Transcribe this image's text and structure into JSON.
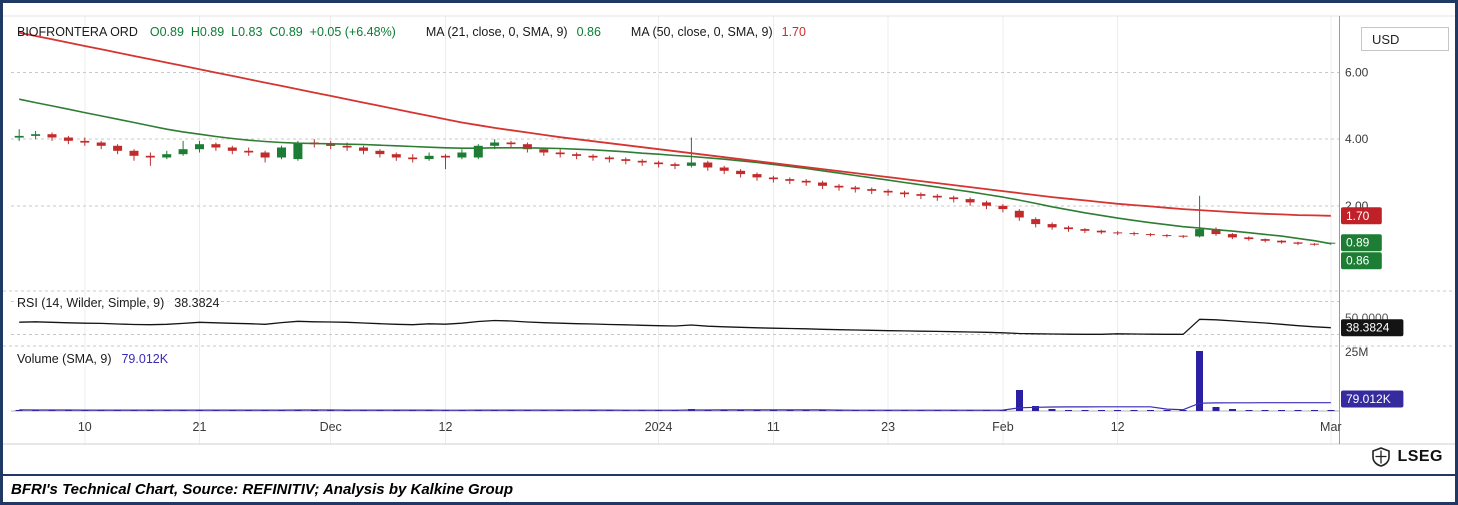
{
  "header": {
    "symbol": "BIOFRONTERA ORD",
    "ohlc_text": "O0.89  H0.89  L0.83  C0.89  +0.05 (+6.48%)",
    "ma21_label": "MA (21, close, 0, SMA, 9)",
    "ma21_value": "0.86",
    "ma50_label": "MA (50, close, 0, SMA, 9)",
    "ma50_value": "1.70",
    "currency": "USD"
  },
  "rsi_panel": {
    "label": "RSI (14, Wilder, Simple, 9)",
    "value": "38.3824",
    "axis_ref": "50.0000",
    "badge": "38.3824"
  },
  "volume_panel": {
    "label": "Volume (SMA, 9)",
    "value": "79.012K",
    "axis_max": "25M",
    "badge": "79.012K"
  },
  "price_axis": {
    "ticks": [
      "6.00",
      "4.00",
      "2.00"
    ],
    "badges": [
      {
        "text": "1.70",
        "bg": "#c02128",
        "price": 1.7
      },
      {
        "text": "0.89",
        "bg": "#1e7d34",
        "price": 0.89
      },
      {
        "text": "0.86",
        "bg": "#1e7d34",
        "price": 0.86
      }
    ]
  },
  "footer": {
    "logo_text": "LSEG",
    "caption": "BFRI's Technical Chart, Source: REFINITIV; Analysis by Kalkine Group"
  },
  "colors": {
    "frame": "#1f3864",
    "up": "#1e7d34",
    "down": "#c22b2b",
    "ma21": "#2e7d32",
    "ma50": "#d63430",
    "rsi_line": "#141414",
    "volume_bar": "#2b1fa2",
    "volume_sma": "#3a2bb5",
    "grid": "#c9c9c9",
    "session_grid": "#ececec",
    "axis_line": "#9c9c9c",
    "axis_text": "#3a3a3a",
    "badge_text": "#ffffff",
    "rsi_badge_bg": "#141414",
    "vol_badge_bg": "#352a9e"
  },
  "chart_data": {
    "type": "candlestick",
    "title": "BIOFRONTERA ORD (BFRI) daily candles with SMA(21), SMA(50), RSI(14), Volume",
    "currency": "USD",
    "price_gridlines": [
      6.0,
      4.0,
      2.0
    ],
    "price_axis_range": [
      -0.5,
      7.55
    ],
    "x_ticks": [
      {
        "index": 4,
        "label": "10"
      },
      {
        "index": 11,
        "label": "21"
      },
      {
        "index": 19,
        "label": "Dec"
      },
      {
        "index": 26,
        "label": "12"
      },
      {
        "index": 39,
        "label": "2024"
      },
      {
        "index": 46,
        "label": "11"
      },
      {
        "index": 53,
        "label": "23"
      },
      {
        "index": 60,
        "label": "Feb"
      },
      {
        "index": 67,
        "label": "12"
      },
      {
        "index": 80,
        "label": "Mar"
      }
    ],
    "candles_ohlc": [
      [
        4.05,
        4.3,
        3.95,
        4.1
      ],
      [
        4.1,
        4.25,
        4.0,
        4.15
      ],
      [
        4.15,
        4.2,
        3.95,
        4.05
      ],
      [
        4.05,
        4.1,
        3.85,
        3.95
      ],
      [
        3.95,
        4.05,
        3.8,
        3.9
      ],
      [
        3.9,
        3.95,
        3.7,
        3.8
      ],
      [
        3.8,
        3.85,
        3.55,
        3.65
      ],
      [
        3.65,
        3.7,
        3.35,
        3.5
      ],
      [
        3.5,
        3.6,
        3.2,
        3.45
      ],
      [
        3.45,
        3.65,
        3.4,
        3.55
      ],
      [
        3.55,
        3.95,
        3.5,
        3.7
      ],
      [
        3.7,
        3.95,
        3.6,
        3.85
      ],
      [
        3.85,
        3.9,
        3.65,
        3.75
      ],
      [
        3.75,
        3.8,
        3.55,
        3.65
      ],
      [
        3.65,
        3.75,
        3.5,
        3.6
      ],
      [
        3.6,
        3.65,
        3.3,
        3.45
      ],
      [
        3.45,
        3.8,
        3.4,
        3.75
      ],
      [
        3.4,
        3.95,
        3.35,
        3.9
      ],
      [
        3.9,
        4.0,
        3.75,
        3.85
      ],
      [
        3.85,
        3.95,
        3.7,
        3.8
      ],
      [
        3.8,
        3.9,
        3.65,
        3.75
      ],
      [
        3.75,
        3.8,
        3.55,
        3.65
      ],
      [
        3.65,
        3.7,
        3.45,
        3.55
      ],
      [
        3.55,
        3.6,
        3.35,
        3.45
      ],
      [
        3.45,
        3.55,
        3.3,
        3.4
      ],
      [
        3.4,
        3.6,
        3.35,
        3.5
      ],
      [
        3.5,
        3.55,
        3.1,
        3.45
      ],
      [
        3.45,
        3.7,
        3.4,
        3.6
      ],
      [
        3.45,
        3.85,
        3.4,
        3.8
      ],
      [
        3.8,
        4.0,
        3.7,
        3.9
      ],
      [
        3.9,
        3.95,
        3.75,
        3.85
      ],
      [
        3.85,
        3.9,
        3.6,
        3.7
      ],
      [
        3.7,
        3.75,
        3.5,
        3.6
      ],
      [
        3.6,
        3.7,
        3.45,
        3.55
      ],
      [
        3.55,
        3.6,
        3.4,
        3.5
      ],
      [
        3.5,
        3.55,
        3.35,
        3.45
      ],
      [
        3.45,
        3.5,
        3.3,
        3.4
      ],
      [
        3.4,
        3.45,
        3.25,
        3.35
      ],
      [
        3.35,
        3.4,
        3.2,
        3.3
      ],
      [
        3.3,
        3.35,
        3.15,
        3.25
      ],
      [
        3.25,
        3.3,
        3.1,
        3.2
      ],
      [
        3.2,
        4.05,
        3.15,
        3.3
      ],
      [
        3.3,
        3.35,
        3.05,
        3.15
      ],
      [
        3.15,
        3.2,
        2.95,
        3.05
      ],
      [
        3.05,
        3.1,
        2.85,
        2.95
      ],
      [
        2.95,
        3.0,
        2.75,
        2.85
      ],
      [
        2.85,
        2.9,
        2.7,
        2.8
      ],
      [
        2.8,
        2.85,
        2.65,
        2.75
      ],
      [
        2.75,
        2.8,
        2.6,
        2.7
      ],
      [
        2.7,
        2.75,
        2.5,
        2.6
      ],
      [
        2.6,
        2.65,
        2.45,
        2.55
      ],
      [
        2.55,
        2.6,
        2.4,
        2.5
      ],
      [
        2.5,
        2.55,
        2.35,
        2.45
      ],
      [
        2.45,
        2.5,
        2.3,
        2.4
      ],
      [
        2.4,
        2.45,
        2.25,
        2.35
      ],
      [
        2.35,
        2.4,
        2.2,
        2.3
      ],
      [
        2.3,
        2.35,
        2.15,
        2.25
      ],
      [
        2.25,
        2.3,
        2.1,
        2.2
      ],
      [
        2.2,
        2.25,
        2.0,
        2.1
      ],
      [
        2.1,
        2.15,
        1.9,
        2.0
      ],
      [
        2.0,
        2.05,
        1.8,
        1.9
      ],
      [
        1.85,
        1.9,
        1.55,
        1.65
      ],
      [
        1.6,
        1.65,
        1.35,
        1.45
      ],
      [
        1.45,
        1.5,
        1.28,
        1.35
      ],
      [
        1.35,
        1.4,
        1.22,
        1.3
      ],
      [
        1.3,
        1.33,
        1.18,
        1.25
      ],
      [
        1.25,
        1.28,
        1.15,
        1.2
      ],
      [
        1.2,
        1.24,
        1.12,
        1.18
      ],
      [
        1.18,
        1.22,
        1.1,
        1.15
      ],
      [
        1.15,
        1.18,
        1.08,
        1.12
      ],
      [
        1.12,
        1.15,
        1.05,
        1.1
      ],
      [
        1.1,
        1.12,
        1.03,
        1.08
      ],
      [
        1.08,
        2.3,
        1.05,
        1.3
      ],
      [
        1.3,
        1.35,
        1.1,
        1.15
      ],
      [
        1.15,
        1.18,
        1.0,
        1.05
      ],
      [
        1.05,
        1.08,
        0.95,
        1.0
      ],
      [
        1.0,
        1.02,
        0.9,
        0.95
      ],
      [
        0.95,
        0.97,
        0.86,
        0.9
      ],
      [
        0.9,
        0.92,
        0.82,
        0.86
      ],
      [
        0.86,
        0.88,
        0.8,
        0.84
      ],
      [
        0.89,
        0.89,
        0.83,
        0.89
      ]
    ],
    "series": [
      {
        "name": "MA21",
        "values": [
          5.2,
          5.1,
          5.0,
          4.9,
          4.8,
          4.7,
          4.6,
          4.5,
          4.4,
          4.3,
          4.22,
          4.15,
          4.08,
          4.02,
          3.97,
          3.93,
          3.9,
          3.88,
          3.87,
          3.86,
          3.85,
          3.84,
          3.82,
          3.8,
          3.78,
          3.76,
          3.74,
          3.73,
          3.73,
          3.74,
          3.74,
          3.74,
          3.73,
          3.72,
          3.7,
          3.68,
          3.65,
          3.62,
          3.58,
          3.55,
          3.51,
          3.48,
          3.44,
          3.4,
          3.35,
          3.3,
          3.24,
          3.18,
          3.12,
          3.05,
          2.98,
          2.91,
          2.84,
          2.77,
          2.7,
          2.63,
          2.56,
          2.49,
          2.42,
          2.34,
          2.26,
          2.17,
          2.07,
          1.97,
          1.88,
          1.79,
          1.71,
          1.63,
          1.56,
          1.49,
          1.43,
          1.37,
          1.33,
          1.28,
          1.24,
          1.19,
          1.14,
          1.09,
          1.02,
          0.95,
          0.86
        ]
      },
      {
        "name": "MA50",
        "values": [
          7.2,
          7.1,
          7.0,
          6.9,
          6.8,
          6.7,
          6.6,
          6.5,
          6.4,
          6.3,
          6.2,
          6.1,
          6.0,
          5.9,
          5.8,
          5.7,
          5.6,
          5.5,
          5.4,
          5.3,
          5.2,
          5.1,
          5.0,
          4.9,
          4.8,
          4.7,
          4.6,
          4.5,
          4.42,
          4.34,
          4.27,
          4.2,
          4.13,
          4.06,
          4.0,
          3.94,
          3.88,
          3.82,
          3.76,
          3.7,
          3.64,
          3.58,
          3.52,
          3.46,
          3.4,
          3.34,
          3.28,
          3.22,
          3.16,
          3.1,
          3.04,
          2.98,
          2.92,
          2.86,
          2.8,
          2.74,
          2.68,
          2.62,
          2.56,
          2.5,
          2.44,
          2.38,
          2.32,
          2.26,
          2.21,
          2.16,
          2.11,
          2.06,
          2.02,
          1.98,
          1.94,
          1.9,
          1.87,
          1.84,
          1.81,
          1.78,
          1.76,
          1.74,
          1.72,
          1.71,
          1.7
        ]
      }
    ],
    "rsi": {
      "label": "RSI (14, Wilder, Simple, 9)",
      "last": 38.3824,
      "gridlines": [
        70,
        30
      ],
      "axis_label": 50.0,
      "range": [
        20,
        80
      ],
      "values": [
        45.0,
        45.5,
        44.8,
        44.2,
        43.8,
        43.5,
        42.8,
        42.2,
        42.0,
        42.5,
        43.5,
        44.8,
        44.2,
        43.6,
        43.2,
        42.5,
        44.5,
        46.0,
        45.5,
        45.2,
        44.8,
        44.0,
        43.2,
        42.5,
        42.0,
        43.0,
        42.6,
        43.8,
        45.8,
        47.0,
        46.4,
        45.2,
        44.4,
        43.8,
        43.2,
        42.8,
        42.2,
        41.8,
        41.2,
        40.8,
        40.4,
        41.6,
        40.2,
        39.4,
        38.8,
        38.2,
        37.8,
        37.4,
        37.0,
        36.4,
        36.0,
        35.6,
        35.2,
        34.8,
        34.5,
        34.2,
        33.9,
        33.6,
        33.2,
        32.8,
        32.2,
        31.4,
        31.0,
        30.8,
        30.6,
        30.5,
        30.4,
        31.0,
        30.8,
        30.6,
        30.5,
        30.4,
        48.5,
        47.8,
        46.5,
        45.2,
        44.0,
        42.5,
        40.8,
        39.5,
        38.38
      ]
    },
    "volume": {
      "label": "Volume (SMA, 9)",
      "sma_last": "79.012K",
      "axis_max_label": "25M",
      "axis_max_millions": 25,
      "values_millions": [
        0.25,
        0.18,
        0.15,
        0.2,
        0.12,
        0.1,
        0.14,
        0.22,
        0.18,
        0.12,
        0.2,
        0.25,
        0.15,
        0.12,
        0.1,
        0.18,
        0.3,
        0.35,
        0.2,
        0.15,
        0.12,
        0.1,
        0.14,
        0.12,
        0.1,
        0.12,
        0.25,
        0.18,
        0.3,
        0.28,
        0.18,
        0.14,
        0.12,
        0.1,
        0.09,
        0.1,
        0.08,
        0.09,
        0.1,
        0.15,
        0.12,
        0.9,
        0.35,
        0.2,
        0.15,
        0.12,
        0.1,
        0.1,
        0.12,
        0.15,
        0.1,
        0.09,
        0.1,
        0.12,
        0.1,
        0.12,
        0.1,
        0.12,
        0.15,
        0.2,
        0.45,
        8.8,
        2.1,
        0.9,
        0.5,
        0.35,
        0.28,
        0.3,
        0.25,
        0.22,
        0.2,
        0.18,
        25.0,
        1.6,
        0.8,
        0.5,
        0.4,
        0.3,
        0.25,
        0.2,
        0.15
      ]
    },
    "last_price": 0.89,
    "ma21_last": 0.86,
    "ma50_last": 1.7
  }
}
